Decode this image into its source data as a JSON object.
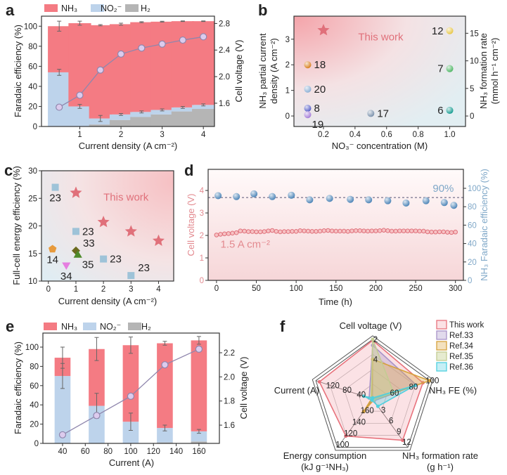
{
  "panel_labels": [
    "a",
    "b",
    "c",
    "d",
    "e",
    "f"
  ],
  "chart_data": [
    {
      "type": "bar",
      "stacked": true,
      "legend": [
        {
          "label": "NH₃",
          "color": "#f47b83"
        },
        {
          "label": "NO₂⁻",
          "color": "#bdd3eb"
        },
        {
          "label": "H₂",
          "color": "#b5b5b5"
        }
      ],
      "xlabel": "Current density (A cm⁻²)",
      "ylabel": "Faradaic efficiency (%)",
      "y2label": "Cell voltage (V)",
      "x": [
        0.5,
        1,
        1.5,
        2,
        2.5,
        3,
        3.5,
        4
      ],
      "series": [
        {
          "name": "H₂",
          "color": "#b5b5b5",
          "values": [
            0,
            0,
            2,
            6.5,
            9.5,
            12,
            15,
            17.5
          ]
        },
        {
          "name": "NO₂⁻",
          "color": "#bdd3eb",
          "values": [
            54,
            20,
            6,
            5.5,
            5,
            4.5,
            4,
            4
          ]
        },
        {
          "name": "NH₃",
          "color": "#f47b83",
          "values": [
            46,
            83,
            93,
            90,
            89.5,
            88,
            86,
            83.5
          ]
        }
      ],
      "errors": [
        5,
        2,
        0.6,
        1,
        0.5,
        0.4,
        0.3,
        0.3
      ],
      "no2_errors": [
        3,
        2,
        3,
        1,
        1,
        1,
        1,
        1
      ],
      "line": {
        "name": "Cell voltage",
        "axis": "right",
        "values": [
          1.54,
          1.72,
          2.1,
          2.34,
          2.43,
          2.49,
          2.55,
          2.6
        ]
      },
      "xlim": [
        0.07,
        4.27
      ],
      "ylim": [
        0,
        110
      ],
      "y2lim": [
        1.25,
        2.91
      ],
      "x_ticks": [
        "1",
        "2",
        "3",
        "4"
      ],
      "y_ticks": [
        "0",
        "20",
        "40",
        "60",
        "80",
        "100"
      ],
      "y2_ticks": [
        "1.6",
        "2.0",
        "2.4",
        "2.8"
      ]
    },
    {
      "type": "scatter",
      "xlabel": "NO₃⁻ concentration (M)",
      "ylabel": [
        "NH₃ partial current",
        "density (A cm⁻²)"
      ],
      "y2label": [
        "NH₃ formation rate",
        "(mmol h⁻¹ cm⁻²)"
      ],
      "xlim": [
        0.013,
        1.1
      ],
      "ylim": [
        -0.41,
        3.9
      ],
      "y2lim": [
        -1.9,
        18.1
      ],
      "x_ticks": [
        "0.2",
        "0.4",
        "0.6",
        "0.8",
        "1.0"
      ],
      "y_ticks": [
        "0",
        "1",
        "2",
        "3"
      ],
      "y2_ticks": [
        "0",
        "5",
        "10",
        "15"
      ],
      "annotation": {
        "text": "This work",
        "x": 0.42,
        "y": 2.95,
        "color": "#e0707a"
      },
      "points": [
        {
          "label": "",
          "x": 0.2,
          "y": 3.35,
          "marker": "star",
          "color": "#e0707a",
          "label_pos": "none"
        },
        {
          "label": "12",
          "x": 1.0,
          "y": 3.33,
          "marker": "sphere",
          "color": "#e8c84a",
          "label_pos": "left"
        },
        {
          "label": "18",
          "x": 0.1,
          "y": 2.0,
          "marker": "sphere",
          "color": "#d98324",
          "label_pos": "right"
        },
        {
          "label": "7",
          "x": 1.0,
          "y": 1.85,
          "marker": "sphere",
          "color": "#52b868",
          "label_pos": "left"
        },
        {
          "label": "20",
          "x": 0.1,
          "y": 1.05,
          "marker": "sphere",
          "color": "#8fb2d6",
          "label_pos": "right"
        },
        {
          "label": "8",
          "x": 0.1,
          "y": 0.3,
          "marker": "sphere",
          "color": "#5b62c8",
          "label_pos": "right"
        },
        {
          "label": "19",
          "x": 0.1,
          "y": 0.05,
          "marker": "sphere",
          "color": "#a77fd9",
          "label_pos": "below-right"
        },
        {
          "label": "17",
          "x": 0.5,
          "y": 0.1,
          "marker": "sphere",
          "color": "#7d93ad",
          "label_pos": "right"
        },
        {
          "label": "6",
          "x": 1.0,
          "y": 0.22,
          "marker": "sphere",
          "color": "#1a9e93",
          "label_pos": "left"
        }
      ]
    },
    {
      "type": "scatter",
      "xlabel": "Current density (A cm⁻²)",
      "ylabel": "Full-cell energy efficiency (%)",
      "xlim": [
        -0.25,
        4.55
      ],
      "ylim": [
        10,
        30
      ],
      "x_ticks": [
        "0",
        "1",
        "2",
        "3",
        "4"
      ],
      "y_ticks": [
        "10",
        "15",
        "20",
        "25",
        "30"
      ],
      "annotation": {
        "text": "This work",
        "x": 2.0,
        "y": 24.6,
        "color": "#e0707a"
      },
      "points": [
        {
          "label": "",
          "x": 1,
          "y": 26,
          "marker": "star",
          "color": "#e0707a",
          "label_pos": "none"
        },
        {
          "label": "",
          "x": 2,
          "y": 20.7,
          "marker": "star",
          "color": "#e0707a",
          "label_pos": "none"
        },
        {
          "label": "",
          "x": 3,
          "y": 19,
          "marker": "star",
          "color": "#e0707a",
          "label_pos": "none"
        },
        {
          "label": "",
          "x": 4,
          "y": 17.3,
          "marker": "star",
          "color": "#e0707a",
          "label_pos": "none"
        },
        {
          "label": "23",
          "x": 0.25,
          "y": 27,
          "marker": "square",
          "color": "#9ec3d8",
          "label_pos": "below"
        },
        {
          "label": "23",
          "x": 1,
          "y": 19,
          "marker": "square",
          "color": "#9ec3d8",
          "label_pos": "right"
        },
        {
          "label": "23",
          "x": 2,
          "y": 14,
          "marker": "square",
          "color": "#9ec3d8",
          "label_pos": "right"
        },
        {
          "label": "23",
          "x": 3,
          "y": 11,
          "marker": "square",
          "color": "#9ec3d8",
          "label_pos": "above-right"
        },
        {
          "label": "14",
          "x": 0.15,
          "y": 15.8,
          "marker": "pentagon",
          "color": "#e79a3c",
          "label_pos": "below"
        },
        {
          "label": "33",
          "x": 1.0,
          "y": 15.5,
          "marker": "diamond",
          "color": "#6b6a1e",
          "label_pos": "above-right"
        },
        {
          "label": "35",
          "x": 1.07,
          "y": 14.8,
          "marker": "triangle",
          "color": "#4e8a2a",
          "label_pos": "below-right"
        },
        {
          "label": "34",
          "x": 0.65,
          "y": 12.8,
          "marker": "triangle-down",
          "color": "#e57ee0",
          "label_pos": "below"
        }
      ]
    },
    {
      "type": "line",
      "xlabel": "Time (h)",
      "ylabel": "Cell voltage (V)",
      "y2label": "NH₃ Faradaic efficiency (%)",
      "xlim": [
        -10.5,
        310
      ],
      "ylim": [
        0,
        4.94
      ],
      "y2lim": [
        0,
        120.6
      ],
      "x_ticks": [
        "0",
        "50",
        "100",
        "150",
        "200",
        "250",
        "300"
      ],
      "y_ticks": [
        "0",
        "1",
        "2",
        "3",
        "4"
      ],
      "y2_ticks": [
        "0",
        "20",
        "40",
        "60",
        "80",
        "100"
      ],
      "voltage": {
        "name": "Cell voltage",
        "color": "#e0707a",
        "t_start": 0,
        "t_step": 5,
        "values": [
          2.02,
          2.05,
          2.07,
          2.08,
          2.1,
          2.12,
          2.2,
          2.19,
          2.17,
          2.17,
          2.16,
          2.16,
          2.17,
          2.2,
          2.22,
          2.18,
          2.16,
          2.17,
          2.17,
          2.18,
          2.18,
          2.21,
          2.2,
          2.19,
          2.18,
          2.18,
          2.19,
          2.21,
          2.22,
          2.2,
          2.19,
          2.19,
          2.19,
          2.18,
          2.2,
          2.21,
          2.21,
          2.2,
          2.19,
          2.2,
          2.2,
          2.21,
          2.23,
          2.21,
          2.19,
          2.19,
          2.2,
          2.2,
          2.2,
          2.2,
          2.2,
          2.19,
          2.19,
          2.16,
          2.15,
          2.15,
          2.16,
          2.16,
          2.14,
          2.13,
          2.15
        ]
      },
      "fe": {
        "name": "NH₃ Faradaic efficiency",
        "color": "#4f86b8",
        "t": [
          2,
          25,
          47,
          70,
          94,
          117,
          142,
          168,
          191,
          215,
          238,
          263,
          286,
          298
        ],
        "values": [
          92,
          91,
          94,
          91,
          92.5,
          87.5,
          89,
          88,
          87.5,
          86.5,
          84,
          86.5,
          84.5,
          81.5
        ]
      },
      "reference_line": {
        "value": 90,
        "label": "90%"
      },
      "annotation": {
        "text": "1.5 A cm⁻²",
        "x": 5,
        "y": 1.45
      }
    },
    {
      "type": "bar",
      "stacked": true,
      "legend": [
        {
          "label": "NH₃",
          "color": "#f47b83"
        },
        {
          "label": "NO₂⁻",
          "color": "#bdd3eb"
        },
        {
          "label": "H₂",
          "color": "#b5b5b5"
        }
      ],
      "xlabel": "Current (A)",
      "ylabel": "Faradaic efficiency (%)",
      "y2label": "Cell voltage (V)",
      "x": [
        40,
        70,
        100,
        130,
        160
      ],
      "series": [
        {
          "name": "H₂",
          "color": "#b5b5b5",
          "values": [
            0,
            0,
            0,
            1,
            2
          ]
        },
        {
          "name": "NO₂⁻",
          "color": "#bdd3eb",
          "values": [
            70,
            39,
            22.5,
            15,
            10.5
          ]
        },
        {
          "name": "NH₃",
          "color": "#f47b83",
          "values": [
            19,
            59,
            79.5,
            88,
            94.5
          ]
        }
      ],
      "errors": [
        11,
        12,
        8.5,
        2,
        4
      ],
      "no2_errors": [
        13,
        13,
        9,
        3,
        2
      ],
      "line": {
        "name": "Cell voltage",
        "axis": "right",
        "values": [
          1.52,
          1.68,
          1.84,
          2.1,
          2.23
        ]
      },
      "xlim": [
        22.7,
        178
      ],
      "ylim": [
        0,
        114.6
      ],
      "y2lim": [
        1.449,
        2.363
      ],
      "x_ticks": [
        "40",
        "60",
        "80",
        "100",
        "120",
        "140",
        "160"
      ],
      "y_ticks": [
        "0",
        "20",
        "40",
        "60",
        "80",
        "100"
      ],
      "y2_ticks": [
        "1.6",
        "1.8",
        "2.0",
        "2.2"
      ]
    },
    {
      "type": "radar",
      "axes": [
        {
          "label": [
            "Cell voltage (V)"
          ],
          "center": 8,
          "outer": 2,
          "ticks": [
            "2",
            "4"
          ]
        },
        {
          "label": [
            "NH₃ FE (%)"
          ],
          "center": 40,
          "outer": 100,
          "ticks": [
            "60",
            "80",
            "100"
          ]
        },
        {
          "label": [
            "NH₃ formation rate",
            "(g h⁻¹)"
          ],
          "center": 0,
          "outer": 13.5,
          "ticks": [
            "3",
            "6",
            "9",
            "12"
          ]
        },
        {
          "label": [
            "Energy consumption",
            "(kJ g⁻¹NH₃)"
          ],
          "center": 180,
          "outer": 95,
          "ticks": [
            "100",
            "120",
            "140",
            "160"
          ]
        },
        {
          "label": [
            "Current (A)"
          ],
          "center": 0,
          "outer": 160,
          "ticks": [
            "40",
            "80",
            "120"
          ]
        }
      ],
      "series": [
        {
          "name": "This work",
          "color": "#e8727c",
          "fill": "rgba(240,140,150,0.25)",
          "values": [
            2.1,
            93,
            11.5,
            115,
            150
          ]
        },
        {
          "name": "Ref.33",
          "color": "#a993c8",
          "fill": "rgba(170,150,200,0.35)",
          "values": [
            2.6,
            86,
            0.5,
            178,
            10
          ]
        },
        {
          "name": "Ref.34",
          "color": "#d6a23c",
          "fill": "rgba(220,170,70,0.35)",
          "values": [
            4,
            100,
            0.3,
            158,
            3
          ]
        },
        {
          "name": "Ref.35",
          "color": "#c3cc92",
          "fill": "rgba(200,210,150,0.45)",
          "values": [
            2.0,
            62,
            0.3,
            178,
            5
          ]
        },
        {
          "name": "Ref.36",
          "color": "#4fd0de",
          "fill": "rgba(90,210,225,0.35)",
          "values": [
            8,
            85,
            2.0,
            180,
            25
          ]
        }
      ]
    }
  ]
}
